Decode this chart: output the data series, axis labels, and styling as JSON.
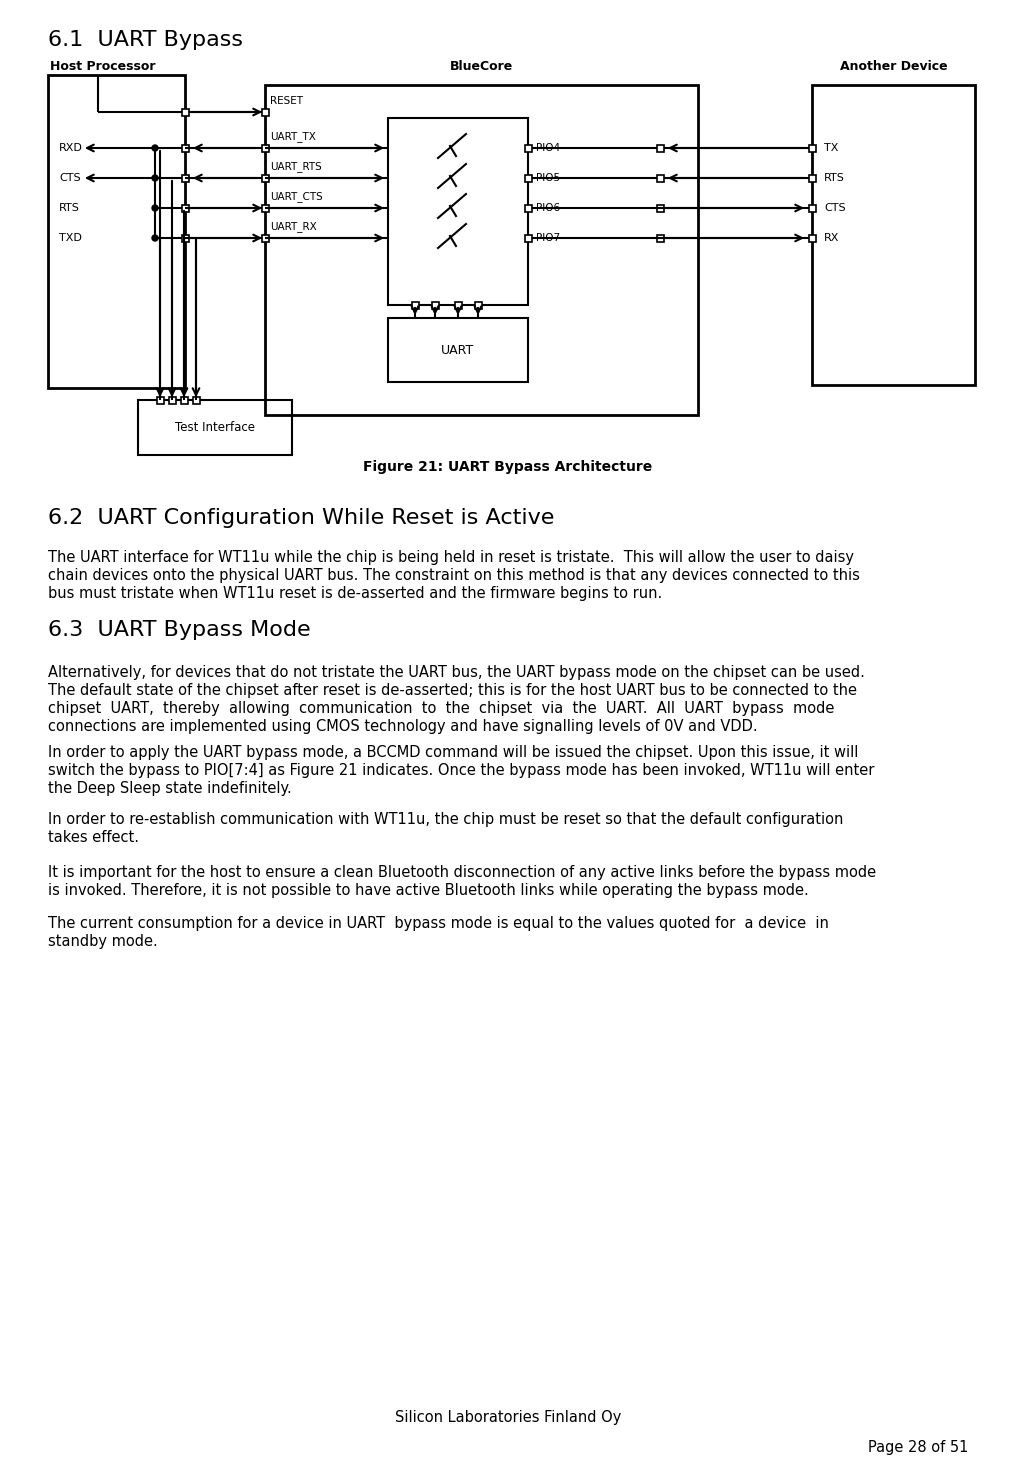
{
  "section_61_title": "6.1  UART Bypass",
  "section_62_title": "6.2  UART Configuration While Reset is Active",
  "section_63_title": "6.3  UART Bypass Mode",
  "figure_caption": "Figure 21: UART Bypass Architecture",
  "header_host": "Host Processor",
  "header_bluecore": "BlueCore",
  "header_another": "Another Device",
  "bluecore_labels_left": [
    "RESET",
    "UART_TX",
    "UART_RTS",
    "UART_CTS",
    "UART_RX"
  ],
  "bluecore_labels_right": [
    "PIO4",
    "PIO5",
    "PIO6",
    "PIO7"
  ],
  "host_labels": [
    "RXD",
    "CTS",
    "RTS",
    "TXD"
  ],
  "another_labels": [
    "TX",
    "RTS",
    "CTS",
    "RX"
  ],
  "uart_box_label": "UART",
  "test_interface_label": "Test Interface",
  "para_62": "The UART interface for WT11u while the chip is being held in reset is tristate. This will allow the user to daisy chain devices onto the physical UART bus. The constraint on this method is that any devices connected to this bus must tristate when WT11u reset is de-asserted and the firmware begins to run.",
  "para_63_1a": "Alternatively, for devices that do not tristate the UART bus, the UART bypass mode on the chipset can be used.",
  "para_63_1b": "The default state of the chipset after reset is de-asserted; this is for the host UART bus to be connected to the",
  "para_63_1c": "chipset  UART,  thereby  allowing  communication  to  the  chipset  via  the  UART.  All  UART  bypass  mode",
  "para_63_1d": "connections are implemented using CMOS technology and have signalling levels of 0V and VDD.",
  "para_63_2a": "In order to apply the UART bypass mode, a BCCMD command will be issued the chipset. Upon this issue, it will",
  "para_63_2b": "switch the bypass to PIO[7:4] as Figure 21 indicates. Once the bypass mode has been invoked, WT11u will enter",
  "para_63_2c": "the Deep Sleep state indefinitely.",
  "para_63_3a": "In order to re-establish communication with WT11u, the chip must be reset so that the default configuration",
  "para_63_3b": "takes effect.",
  "para_63_4a": "It is important for the host to ensure a clean Bluetooth disconnection of any active links before the bypass mode",
  "para_63_4b": "is invoked. Therefore, it is not possible to have active Bluetooth links while operating the bypass mode.",
  "para_63_5a": "The current consumption for a device in UART  bypass mode is equal to the values quoted for  a device  in",
  "para_63_5b": "standby mode.",
  "footer_center": "Silicon Laboratories Finland Oy",
  "footer_right": "Page 28 of 51",
  "bg_color": "#ffffff",
  "text_color": "#000000"
}
